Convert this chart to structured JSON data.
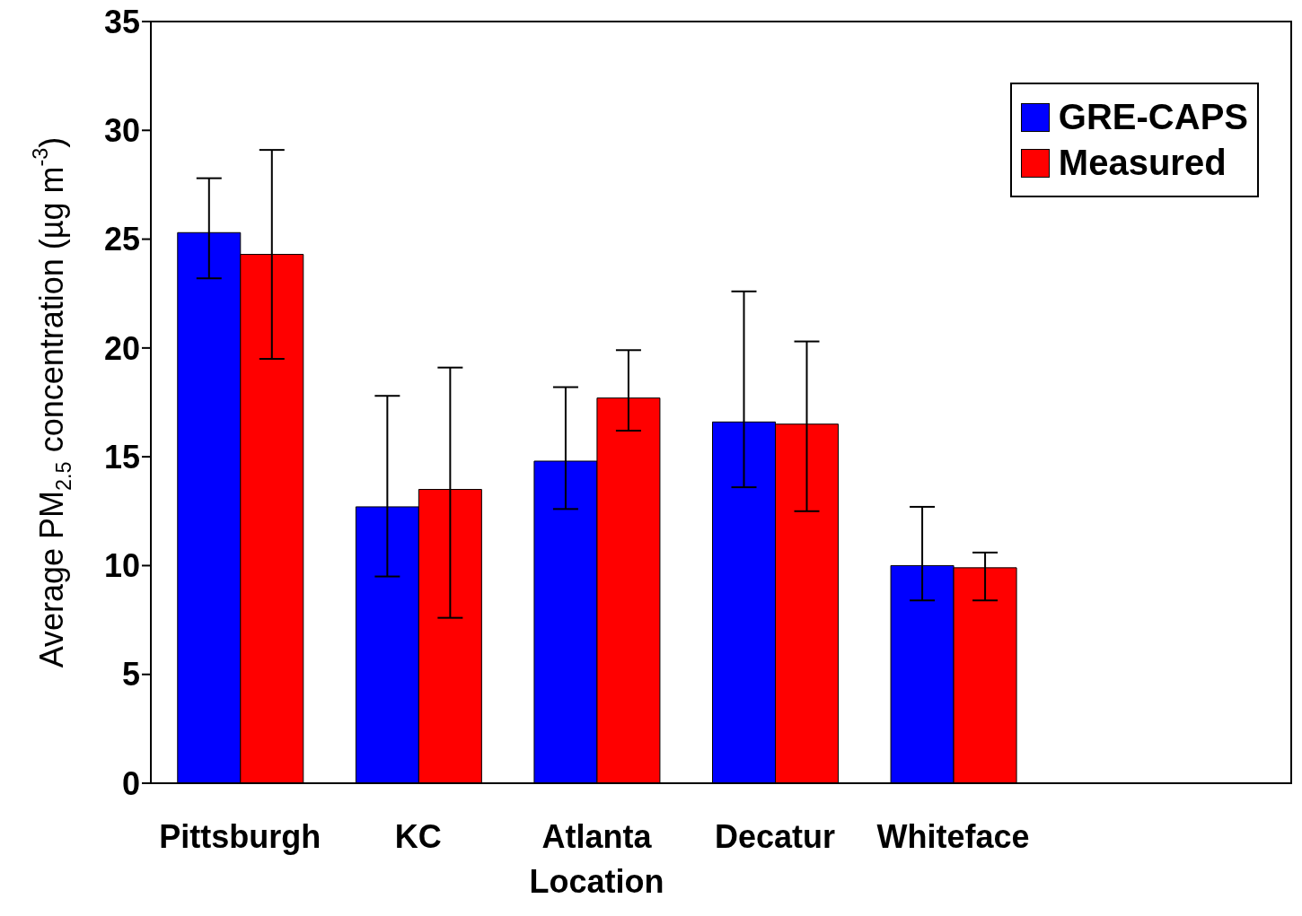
{
  "chart_data": {
    "type": "bar",
    "xlabel": "Location",
    "ylabel": "Average PM$_{2.5}$ concentration (µg m$^{-3}$)",
    "categories": [
      "Pittsburgh",
      "KC",
      "Atlanta",
      "Decatur",
      "Whiteface"
    ],
    "series": [
      {
        "name": "GRE-CAPS",
        "color": "#0000ff",
        "values": [
          25.3,
          12.7,
          14.8,
          16.6,
          10.0
        ],
        "errors": [
          [
            23.2,
            27.8
          ],
          [
            9.5,
            17.8
          ],
          [
            12.6,
            18.2
          ],
          [
            13.6,
            22.6
          ],
          [
            8.4,
            12.7
          ]
        ]
      },
      {
        "name": "Measured",
        "color": "#ff0000",
        "values": [
          24.3,
          13.5,
          17.7,
          16.5,
          9.9
        ],
        "errors": [
          [
            19.5,
            29.1
          ],
          [
            7.6,
            19.1
          ],
          [
            16.2,
            19.9
          ],
          [
            12.5,
            20.3
          ],
          [
            8.4,
            10.6
          ]
        ]
      }
    ],
    "ylim": [
      0,
      35
    ],
    "yticks": [
      0,
      5,
      10,
      15,
      20,
      25,
      30,
      35
    ],
    "grid": false,
    "legend": "top right"
  }
}
